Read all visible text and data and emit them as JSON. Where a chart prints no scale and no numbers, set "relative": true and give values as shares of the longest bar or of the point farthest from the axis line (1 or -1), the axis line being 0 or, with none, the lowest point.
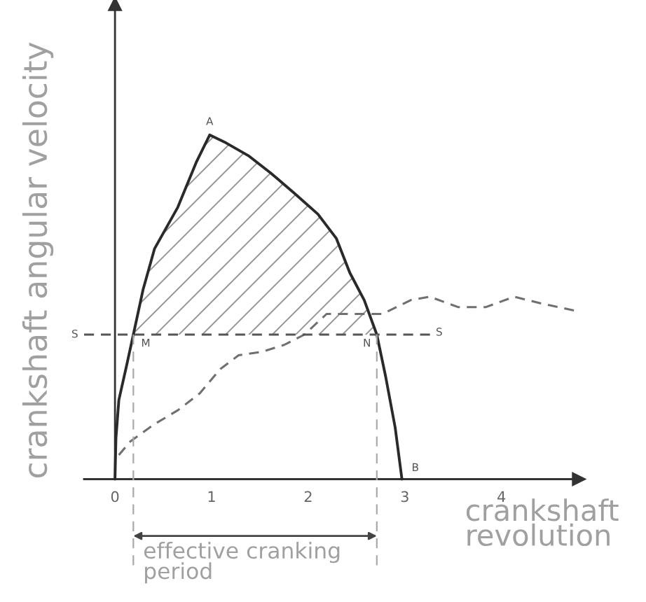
{
  "chart_data": {
    "type": "line",
    "relative": true,
    "xlabel": "crankshaft revolution",
    "ylabel": "crankshaft angular velocity",
    "xlim": [
      -0.32,
      4.8
    ],
    "xticks": [
      0,
      1,
      2,
      3,
      4
    ],
    "tick_labels": "x",
    "series": [
      {
        "color": "#2a2a2a",
        "line_style": "solid",
        "x": [
          0,
          0.01,
          0.04,
          0.12,
          0.19,
          0.29,
          0.41,
          0.65,
          0.84,
          0.98,
          1.13,
          1.38,
          1.61,
          1.86,
          2.1,
          2.29,
          2.43,
          2.58,
          2.71,
          2.8,
          2.9,
          2.97
        ],
        "values": [
          0,
          0.12,
          0.23,
          0.33,
          0.42,
          0.55,
          0.67,
          0.79,
          0.92,
          1.0,
          0.98,
          0.94,
          0.89,
          0.83,
          0.77,
          0.7,
          0.6,
          0.52,
          0.42,
          0.3,
          0.15,
          0
        ],
        "lower": [
          null,
          null,
          null,
          null,
          0.42,
          0.42,
          0.42,
          0.42,
          0.42,
          0.42,
          0.42,
          0.42,
          0.42,
          0.42,
          0.42,
          0.42,
          0.42,
          0.42,
          0.42,
          null,
          null,
          null
        ],
        "upper": [
          null,
          null,
          null,
          null,
          0.42,
          0.55,
          0.67,
          0.79,
          0.92,
          1.0,
          0.98,
          0.94,
          0.89,
          0.83,
          0.77,
          0.7,
          0.6,
          0.52,
          0.42,
          null,
          null,
          null
        ]
      },
      {
        "color": "#707070",
        "line_style": "dashed",
        "x": [
          0.04,
          0.16,
          0.41,
          0.65,
          0.88,
          1.09,
          1.28,
          1.52,
          1.75,
          1.96,
          2.19,
          2.48,
          2.77,
          3.06,
          3.26,
          3.55,
          3.84,
          4.13,
          4.42,
          4.75
        ],
        "values": [
          0.07,
          0.11,
          0.16,
          0.2,
          0.25,
          0.32,
          0.36,
          0.37,
          0.39,
          0.42,
          0.48,
          0.48,
          0.48,
          0.52,
          0.53,
          0.5,
          0.5,
          0.53,
          0.51,
          0.49
        ]
      },
      {
        "color": "#555555",
        "line_style": "dashed",
        "x": [
          -0.32,
          3.26
        ],
        "values": [
          0.42,
          0.42
        ]
      },
      {
        "color": "#aaaaaa",
        "line_style": "dashed",
        "x": [
          0.19,
          0.19
        ],
        "values": [
          0.42,
          -0.25
        ]
      },
      {
        "color": "#aaaaaa",
        "line_style": "dashed",
        "x": [
          2.71,
          2.71
        ],
        "values": [
          0.42,
          -0.25
        ]
      }
    ],
    "annotations": [
      {
        "text": "A",
        "x": 0.98,
        "y": 1.0
      },
      {
        "text": "M",
        "x": 0.19,
        "y": 0.42
      },
      {
        "text": "N",
        "x": 2.71,
        "y": 0.42
      },
      {
        "text": "B",
        "x": 2.97,
        "y": 0
      },
      {
        "text": "S",
        "x": -0.32,
        "y": 0.42
      },
      {
        "text": "S",
        "x": 3.26,
        "y": 0.42
      },
      "effective cranking period"
    ]
  }
}
